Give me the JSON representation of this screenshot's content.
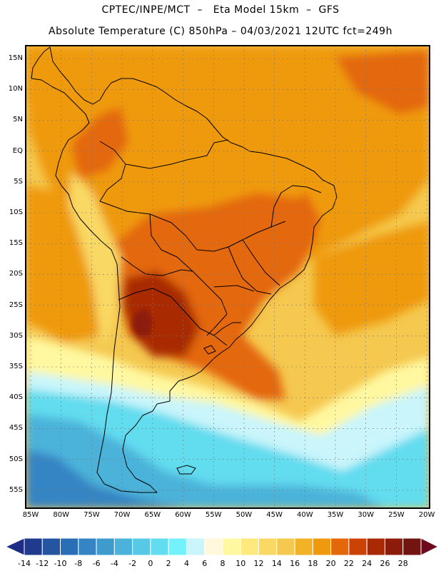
{
  "header": {
    "title_line1": "CPTEC/INPE/MCT  –   Eta Model 15km  –  GFS",
    "title_line2": "Absolute Temperature (C) 850hPa – 04/03/2021 12UTC fct=249h"
  },
  "map": {
    "region": "South America",
    "lat_labels": [
      "15N",
      "10N",
      "5N",
      "EQ",
      "5S",
      "10S",
      "15S",
      "20S",
      "25S",
      "30S",
      "35S",
      "40S",
      "45S",
      "50S",
      "55S"
    ],
    "lon_labels": [
      "85W",
      "80W",
      "75W",
      "70W",
      "65W",
      "60W",
      "55W",
      "50W",
      "45W",
      "40W",
      "35W",
      "30W",
      "25W",
      "20W"
    ]
  },
  "colorbar": {
    "unit": "C",
    "labels": [
      "-14",
      "-12",
      "-10",
      "-8",
      "-6",
      "-4",
      "-2",
      "0",
      "2",
      "4",
      "6",
      "8",
      "10",
      "12",
      "14",
      "16",
      "18",
      "20",
      "22",
      "24",
      "26",
      "28"
    ],
    "low_overflow_color": "#1c2d83",
    "high_overflow_color": "#6e0a1e",
    "colors": [
      "#203a8c",
      "#2555a0",
      "#2a6eb5",
      "#3584c3",
      "#3f9bce",
      "#4bb2d9",
      "#57c8e6",
      "#62dcef",
      "#73f2fb",
      "#c9f5fb",
      "#fff8dc",
      "#fff8a0",
      "#fde97e",
      "#f9d963",
      "#f5c84f",
      "#f2b227",
      "#ef9a0e",
      "#e46709",
      "#cc4205",
      "#a92905",
      "#8d1b0b",
      "#721410"
    ]
  },
  "field_colors": {
    "ocean_north": "#f5c84f",
    "tropical_ocean_warm": "#ef9a0e",
    "continent_hot": "#e46709",
    "hot_core": "#a92905",
    "hot_peak": "#8d1b0b",
    "andes_cold": "#f9d963",
    "south_cool": "#fff8a0",
    "southern_pale": "#c9f5fb",
    "southern_cold": "#62dcef",
    "southern_colder": "#4bb2d9",
    "polar": "#3584c3"
  }
}
